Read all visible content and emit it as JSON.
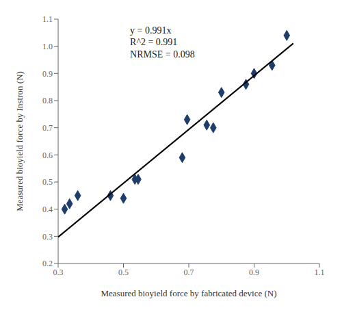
{
  "chart_data": {
    "type": "scatter",
    "x_label": "Measured bioyield force by fabricated device (N)",
    "y_label": "Measured bioyield force by Instron (N)",
    "series": [
      {
        "type": "scatter",
        "marker": "diamond",
        "color": "#1f3d6b",
        "x": [
          0.32,
          0.335,
          0.36,
          0.46,
          0.5,
          0.535,
          0.545,
          0.68,
          0.695,
          0.755,
          0.775,
          0.8,
          0.875,
          0.9,
          0.955,
          1.0
        ],
        "values": [
          0.4,
          0.42,
          0.45,
          0.45,
          0.44,
          0.51,
          0.51,
          0.59,
          0.73,
          0.71,
          0.7,
          0.83,
          0.86,
          0.9,
          0.93,
          1.04
        ]
      },
      {
        "type": "line",
        "color": "#000000",
        "x": [
          0.3,
          1.02
        ],
        "values": [
          0.2973,
          1.01082
        ]
      }
    ],
    "annotations": [
      {
        "text": "y = 0.991x\nR^2 = 0.991\nNRMSE = 0.098",
        "x": 0.52,
        "y": 1.08
      }
    ],
    "xlim": [
      0.3,
      1.1
    ],
    "ylim": [
      0.2,
      1.1
    ],
    "xticks": [
      0.3,
      0.5,
      0.7,
      0.9,
      1.1
    ],
    "yticks": [
      0.2,
      0.3,
      0.4,
      0.5,
      0.6,
      0.7,
      0.8,
      0.9,
      {
        "value": 1.0,
        "label": "1.0"
      },
      1.1
    ],
    "grid": false
  }
}
